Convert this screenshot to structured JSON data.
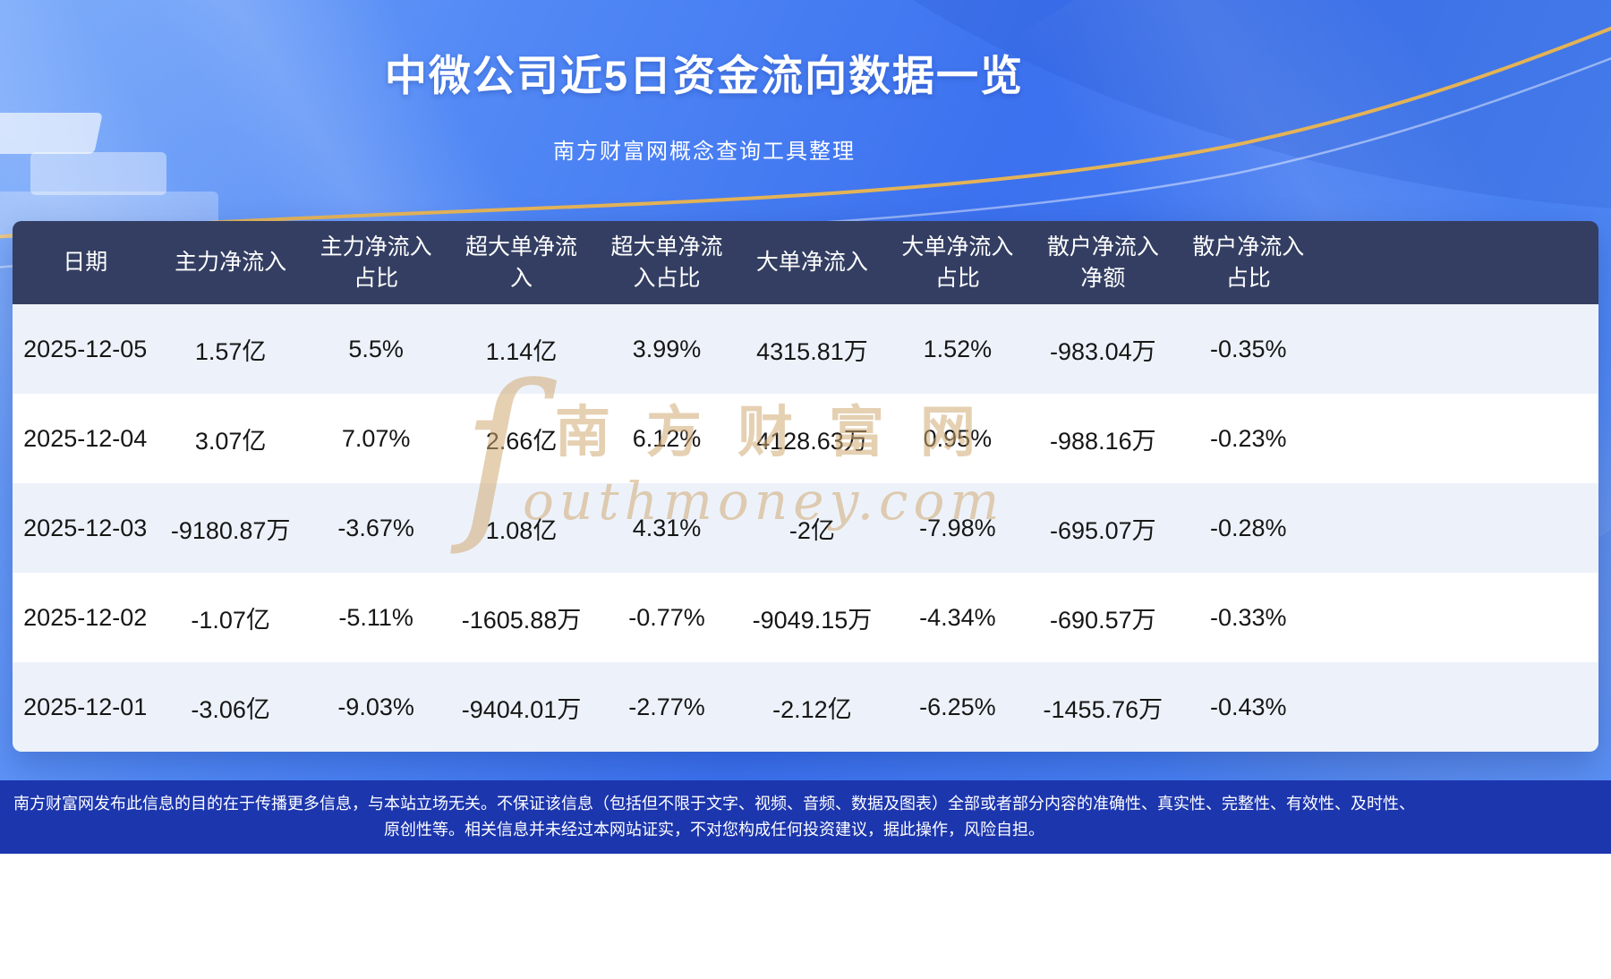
{
  "header": {
    "title": "中微公司近5日资金流向数据一览",
    "subtitle": "南方财富网概念查询工具整理"
  },
  "watermark": {
    "initial": "ſ",
    "cn": "南方财富网",
    "en": "outhmoney.com"
  },
  "table": {
    "headers": [
      "日期",
      "主力净流入",
      "主力净流入占比",
      "超大单净流入",
      "超大单净流入占比",
      "大单净流入",
      "大单净流入占比",
      "散户净流入净额",
      "散户净流入占比"
    ],
    "rows": [
      [
        "2025-12-05",
        "1.57亿",
        "5.5%",
        "1.14亿",
        "3.99%",
        "4315.81万",
        "1.52%",
        "-983.04万",
        "-0.35%"
      ],
      [
        "2025-12-04",
        "3.07亿",
        "7.07%",
        "2.66亿",
        "6.12%",
        "4128.63万",
        "0.95%",
        "-988.16万",
        "-0.23%"
      ],
      [
        "2025-12-03",
        "-9180.87万",
        "-3.67%",
        "1.08亿",
        "4.31%",
        "-2亿",
        "-7.98%",
        "-695.07万",
        "-0.28%"
      ],
      [
        "2025-12-02",
        "-1.07亿",
        "-5.11%",
        "-1605.88万",
        "-0.77%",
        "-9049.15万",
        "-4.34%",
        "-690.57万",
        "-0.33%"
      ],
      [
        "2025-12-01",
        "-3.06亿",
        "-9.03%",
        "-9404.01万",
        "-2.77%",
        "-2.12亿",
        "-6.25%",
        "-1455.76万",
        "-0.43%"
      ]
    ]
  },
  "footer": {
    "disclaimer": "南方财富网发布此信息的目的在于传播更多信息，与本站立场无关。不保证该信息（包括但不限于文字、视频、音频、数据及图表）全部或者部分内容的准确性、真实性、完整性、有效性、及时性、原创性等。相关信息并未经过本网站证实，不对您构成任何投资建议，据此操作，风险自担。"
  },
  "colors": {
    "background_top": "#78a9fa",
    "background_main": "#3c71ef",
    "table_header_bg": "#333e62",
    "row_alt_bg": "#edf2fa",
    "footer_bar_bg": "#1c36ae",
    "accent_gold": "#edb64e",
    "title_text": "#ffffff",
    "cell_text": "#161616"
  },
  "chart_data": {
    "type": "table",
    "title": "中微公司近5日资金流向数据一览",
    "subtitle": "南方财富网概念查询工具整理",
    "columns": [
      "日期",
      "主力净流入",
      "主力净流入占比",
      "超大单净流入",
      "超大单净流入占比",
      "大单净流入",
      "大单净流入占比",
      "散户净流入净额",
      "散户净流入占比"
    ],
    "rows": [
      [
        "2025-12-05",
        "1.57亿",
        "5.5%",
        "1.14亿",
        "3.99%",
        "4315.81万",
        "1.52%",
        "-983.04万",
        "-0.35%"
      ],
      [
        "2025-12-04",
        "3.07亿",
        "7.07%",
        "2.66亿",
        "6.12%",
        "4128.63万",
        "0.95%",
        "-988.16万",
        "-0.23%"
      ],
      [
        "2025-12-03",
        "-9180.87万",
        "-3.67%",
        "1.08亿",
        "4.31%",
        "-2亿",
        "-7.98%",
        "-695.07万",
        "-0.28%"
      ],
      [
        "2025-12-02",
        "-1.07亿",
        "-5.11%",
        "-1605.88万",
        "-0.77%",
        "-9049.15万",
        "-4.34%",
        "-690.57万",
        "-0.33%"
      ],
      [
        "2025-12-01",
        "-3.06亿",
        "-9.03%",
        "-9404.01万",
        "-2.77%",
        "-2.12亿",
        "-6.25%",
        "-1455.76万",
        "-0.43%"
      ]
    ]
  }
}
